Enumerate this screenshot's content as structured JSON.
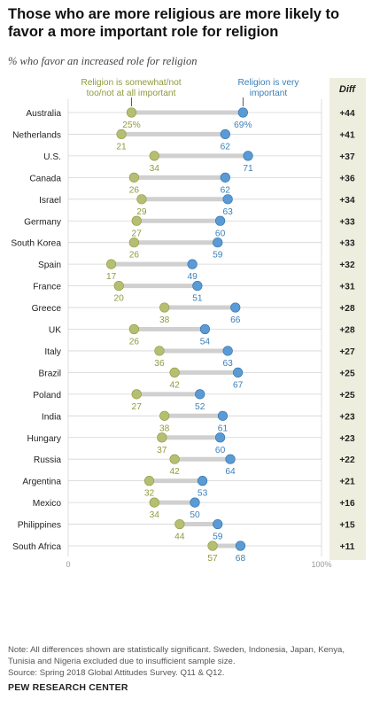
{
  "title": "Those who are more religious are more likely to favor a more important role for religion",
  "subtitle": "% who favor an increased role for religion",
  "footer": {
    "note": "Note: All differences shown are statistically significant. Sweden, Indonesia, Japan, Kenya, Tunisia and Nigeria excluded due to insufficient sample size.",
    "source": "Source: Spring 2018 Global Attitudes Survey. Q11 & Q12.",
    "brand": "PEW RESEARCH CENTER"
  },
  "colors": {
    "low": "#b5be72",
    "low_text": "#8f9a3c",
    "high": "#5b9bd5",
    "high_text": "#3b7fb8",
    "connector": "#d0d0d0",
    "diff_bg": "#eeeedf",
    "gridline": "#d4d4d4"
  },
  "chart_data": {
    "type": "dot",
    "xlim": [
      0,
      100
    ],
    "x_ticks": [
      "0",
      "100%"
    ],
    "diff_header": "Diff",
    "series": [
      {
        "name": "Religion is somewhat/not too/not at all important",
        "key": "low"
      },
      {
        "name": "Religion is very important",
        "key": "high"
      }
    ],
    "first_row_suffix": "%",
    "rows": [
      {
        "country": "Australia",
        "low": 25,
        "high": 69,
        "diff": "+44"
      },
      {
        "country": "Netherlands",
        "low": 21,
        "high": 62,
        "diff": "+41"
      },
      {
        "country": "U.S.",
        "low": 34,
        "high": 71,
        "diff": "+37"
      },
      {
        "country": "Canada",
        "low": 26,
        "high": 62,
        "diff": "+36"
      },
      {
        "country": "Israel",
        "low": 29,
        "high": 63,
        "diff": "+34"
      },
      {
        "country": "Germany",
        "low": 27,
        "high": 60,
        "diff": "+33"
      },
      {
        "country": "South Korea",
        "low": 26,
        "high": 59,
        "diff": "+33"
      },
      {
        "country": "Spain",
        "low": 17,
        "high": 49,
        "diff": "+32"
      },
      {
        "country": "France",
        "low": 20,
        "high": 51,
        "diff": "+31"
      },
      {
        "country": "Greece",
        "low": 38,
        "high": 66,
        "diff": "+28"
      },
      {
        "country": "UK",
        "low": 26,
        "high": 54,
        "diff": "+28"
      },
      {
        "country": "Italy",
        "low": 36,
        "high": 63,
        "diff": "+27"
      },
      {
        "country": "Brazil",
        "low": 42,
        "high": 67,
        "diff": "+25"
      },
      {
        "country": "Poland",
        "low": 27,
        "high": 52,
        "diff": "+25"
      },
      {
        "country": "India",
        "low": 38,
        "high": 61,
        "diff": "+23"
      },
      {
        "country": "Hungary",
        "low": 37,
        "high": 60,
        "diff": "+23"
      },
      {
        "country": "Russia",
        "low": 42,
        "high": 64,
        "diff": "+22"
      },
      {
        "country": "Argentina",
        "low": 32,
        "high": 53,
        "diff": "+21"
      },
      {
        "country": "Mexico",
        "low": 34,
        "high": 50,
        "diff": "+16"
      },
      {
        "country": "Philippines",
        "low": 44,
        "high": 59,
        "diff": "+15"
      },
      {
        "country": "South Africa",
        "low": 57,
        "high": 68,
        "diff": "+11"
      }
    ]
  }
}
